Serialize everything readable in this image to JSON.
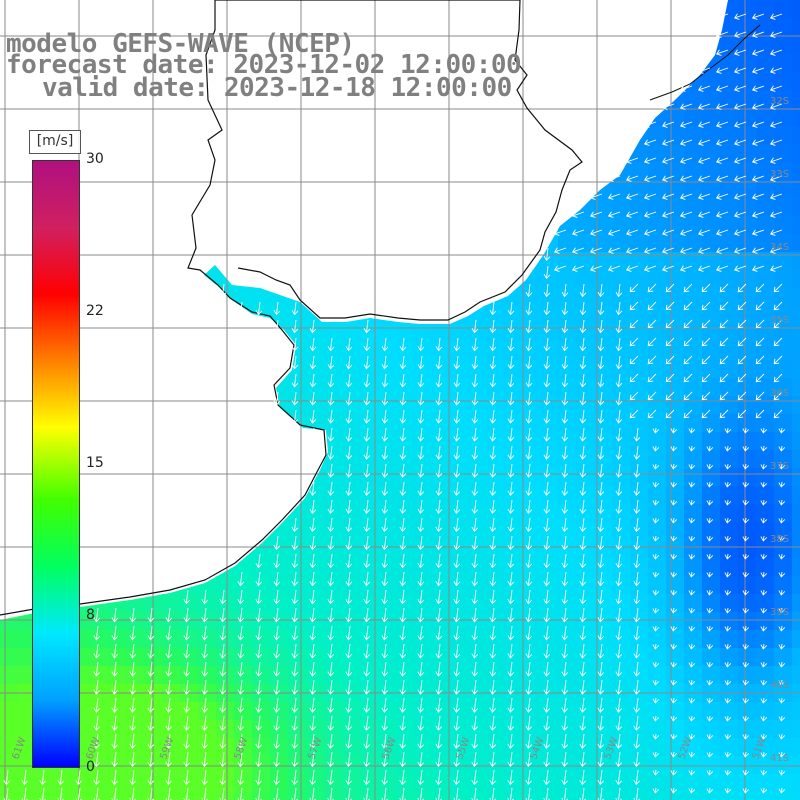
{
  "title": {
    "line1": "modelo GEFS-WAVE (NCEP)",
    "line2": "forecast date: 2023-12-02 12:00:00",
    "line3": "valid date: 2023-12-18 12:00:00"
  },
  "colorbar": {
    "unit": "[m/s]",
    "ticks": [
      "30",
      "22",
      "15",
      "8",
      "0"
    ],
    "colors": [
      "#0000ff",
      "#00a0ff",
      "#00e8ff",
      "#00ff60",
      "#40ff00",
      "#ffff00",
      "#ff8000",
      "#ff0000",
      "#d02060",
      "#b01080"
    ]
  },
  "map": {
    "lat_labels": [
      "32S",
      "33S",
      "34S",
      "35S",
      "36S",
      "37S",
      "38S",
      "39S",
      "40S",
      "41S"
    ],
    "lon_labels": [
      "61W",
      "60W",
      "59W",
      "58W",
      "57W",
      "56W",
      "55W",
      "54W",
      "53W",
      "52W",
      "51W"
    ],
    "land_color": "#ffffff",
    "grid_color": "#808080",
    "field": "wind speed with direction arrows"
  }
}
